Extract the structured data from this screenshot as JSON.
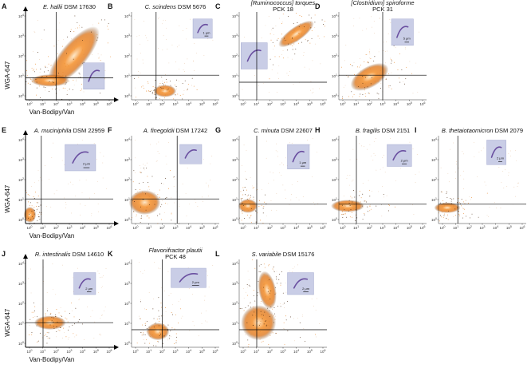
{
  "axes": {
    "y_label": "WGA-647",
    "x_label": "Van-Bodipy/Van",
    "tick_base": "10",
    "y_exponents": [
      "0",
      "1",
      "2",
      "3",
      "4"
    ],
    "x_exponents": [
      "0",
      "1",
      "2",
      "3",
      "4",
      "5",
      "6"
    ]
  },
  "panels": [
    {
      "letter": "A",
      "species": "E. hallii",
      "strain": "DSM 17630"
    },
    {
      "letter": "B",
      "species": "C. scindens",
      "strain": "DSM 5676",
      "scale": "1 μm"
    },
    {
      "letter": "C",
      "species": "[Ruminococcus] torques",
      "subtitle": "PCK 18"
    },
    {
      "letter": "D",
      "species": "[Clostridium] spiroforme",
      "subtitle": "PCK 31",
      "scale": "5 μm"
    },
    {
      "letter": "E",
      "species": "A. muciniphila",
      "strain": "DSM 22959",
      "scale": "2 μm"
    },
    {
      "letter": "F",
      "species": "A. finegoldii",
      "strain": "DSM 17242"
    },
    {
      "letter": "G",
      "species": "C. minuta",
      "strain": "DSM 22607",
      "scale": "1 μm"
    },
    {
      "letter": "H",
      "species": "B. fragilis",
      "strain": "DSM 2151",
      "scale": "2 μm"
    },
    {
      "letter": "I",
      "species": "B. thetaiotaomicron",
      "strain": "DSM 2079",
      "scale": "2 μm"
    },
    {
      "letter": "J",
      "species": "R. intestinalis",
      "strain": "DSM 14610",
      "scale": "2 μm"
    },
    {
      "letter": "K",
      "species": "Flavonifractor plautii",
      "subtitle": "PCK 48",
      "scale": "2 μm"
    },
    {
      "letter": "L",
      "species": "S. variabile",
      "strain": "DSM 15176",
      "scale": "2 μm"
    }
  ]
}
